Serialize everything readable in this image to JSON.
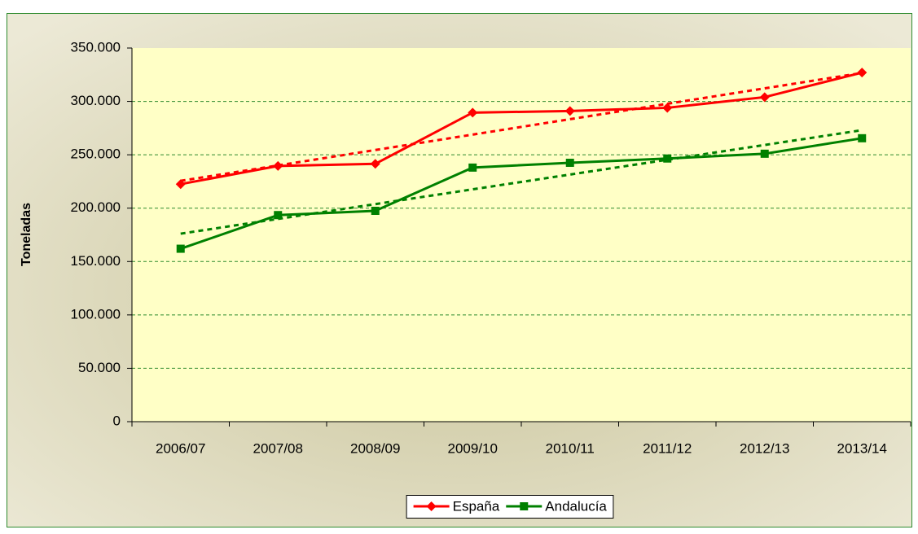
{
  "chart_data": {
    "type": "line",
    "y_label": "Toneladas",
    "categories": [
      "2006/07",
      "2007/08",
      "2008/09",
      "2009/10",
      "2010/11",
      "2011/12",
      "2012/13",
      "2013/14"
    ],
    "series": [
      {
        "name": "España",
        "color": "#ff0000",
        "marker": "diamond",
        "values": [
          222500,
          239500,
          241500,
          289500,
          291000,
          294000,
          304000,
          327000
        ]
      },
      {
        "name": "Andalucía",
        "color": "#008000",
        "marker": "square",
        "values": [
          162000,
          193500,
          197500,
          238000,
          242500,
          246500,
          251000,
          265500
        ]
      }
    ],
    "ylim": [
      0,
      350000
    ],
    "yticks": [
      0,
      {
        "value": 50000,
        "label": "50.000"
      },
      {
        "value": 100000,
        "label": "100.000"
      },
      {
        "value": 150000,
        "label": "150.000"
      },
      {
        "value": 200000,
        "label": "200.000"
      },
      {
        "value": 250000,
        "label": "250.000"
      },
      {
        "value": 300000,
        "label": "300.000"
      },
      {
        "value": 350000,
        "label": "350.000"
      }
    ],
    "grid": true,
    "trendline": true,
    "legend": "bottom"
  }
}
